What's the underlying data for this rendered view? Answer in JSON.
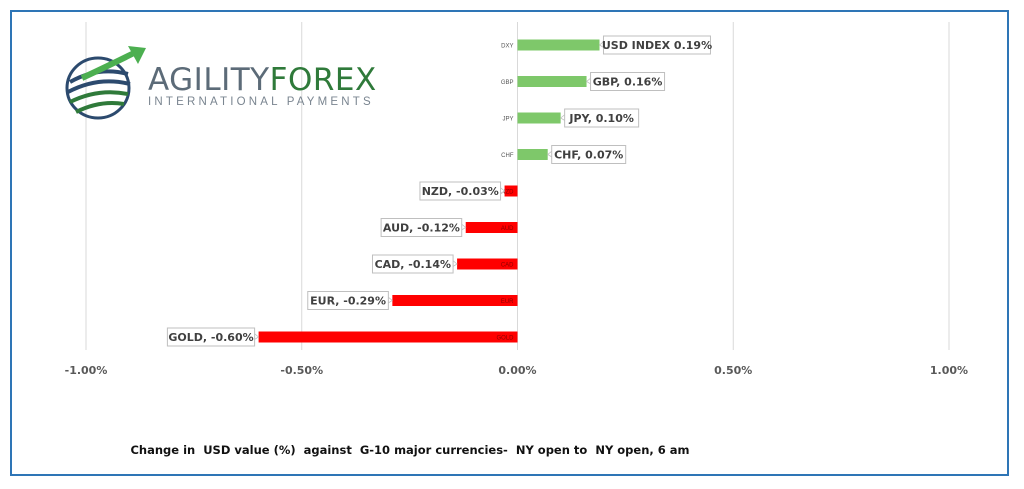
{
  "logo": {
    "word1": "AGILITY",
    "word2": "FOREX",
    "tagline": "INTERNATIONAL PAYMENTS"
  },
  "caption": "Change in  USD value (%)  against  G-10 major currencies-  NY open to  NY open, 6 am",
  "colors": {
    "positive": "#7ec86a",
    "negative": "#ff0000",
    "frame": "#2e75b6",
    "grid": "#d9d9d9"
  },
  "chart_data": {
    "type": "bar",
    "orientation": "horizontal",
    "xlim": [
      -1.0,
      1.0
    ],
    "xticks": [
      {
        "value": -1.0,
        "label": "-1.00%"
      },
      {
        "value": -0.5,
        "label": "-0.50%"
      },
      {
        "value": 0.0,
        "label": "0.00%"
      },
      {
        "value": 0.5,
        "label": "0.50%"
      },
      {
        "value": 1.0,
        "label": "1.00%"
      }
    ],
    "grid": "vertical",
    "bars": [
      {
        "category": "DXY",
        "value": 0.19,
        "label": "USD INDEX 0.19%"
      },
      {
        "category": "GBP",
        "value": 0.16,
        "label": "GBP, 0.16%"
      },
      {
        "category": "JPY",
        "value": 0.1,
        "label": "JPY, 0.10%"
      },
      {
        "category": "CHF",
        "value": 0.07,
        "label": "CHF, 0.07%"
      },
      {
        "category": "NZD",
        "value": -0.03,
        "label": "NZD, -0.03%"
      },
      {
        "category": "AUD",
        "value": -0.12,
        "label": "AUD, -0.12%"
      },
      {
        "category": "CAD",
        "value": -0.14,
        "label": "CAD, -0.14%"
      },
      {
        "category": "EUR",
        "value": -0.29,
        "label": "EUR, -0.29%"
      },
      {
        "category": "GOLD",
        "value": -0.6,
        "label": "GOLD, -0.60%"
      }
    ]
  }
}
